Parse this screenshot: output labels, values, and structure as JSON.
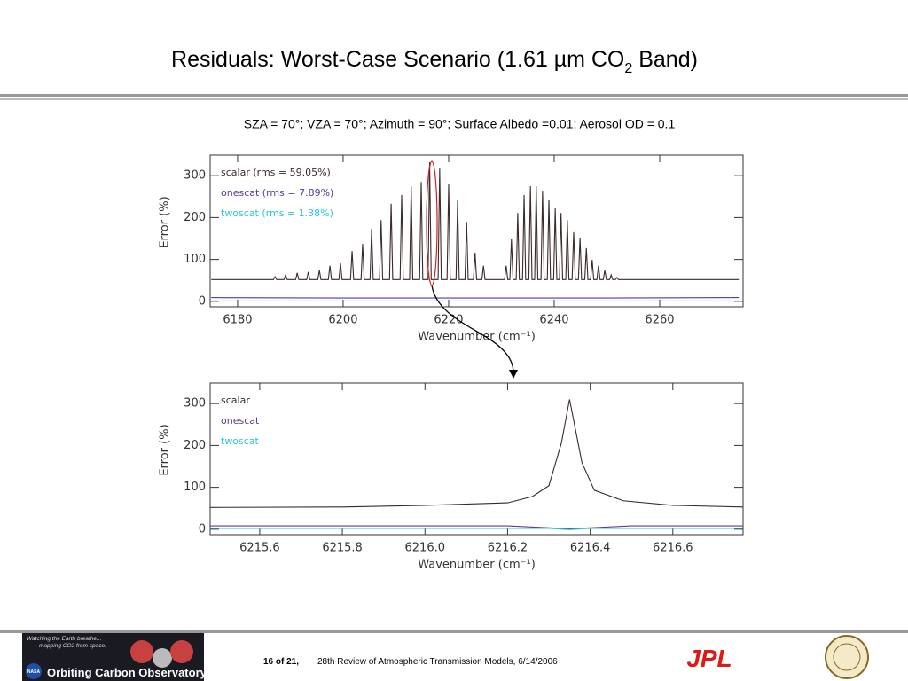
{
  "header": {
    "title_parts": [
      "Residuals: Worst-Case Scenario (1.61 µm CO",
      "2",
      " Band)"
    ],
    "subtitle": "SZA = 70°; VZA = 70°; Azimuth = 90°; Surface Albedo =0.01; Aerosol OD = 0.1"
  },
  "chart_data": [
    {
      "type": "line",
      "xlabel": "Wavenumber (cm⁻¹)",
      "ylabel": "Error (%)",
      "xlim": [
        6174.8,
        6275.8
      ],
      "ylim": [
        -13,
        349
      ],
      "xticks": [
        6180,
        6200,
        6220,
        6240,
        6260
      ],
      "yticks": [
        0,
        100,
        200,
        300
      ],
      "legend_loc": "upper left",
      "series": [
        {
          "name": "scalar (rms = 59.05%)",
          "color": "#3a2a2a",
          "x": [
            6175,
            6186.8,
            6187.1,
            6187.4,
            6188.8,
            6189.1,
            6189.4,
            6191.0,
            6191.3,
            6191.6,
            6193.1,
            6193.4,
            6193.7,
            6195.2,
            6195.5,
            6195.8,
            6197.2,
            6197.5,
            6197.8,
            6199.2,
            6199.5,
            6199.8,
            6201.4,
            6201.7,
            6202.0,
            6203.4,
            6203.7,
            6204.0,
            6205.1,
            6205.4,
            6205.7,
            6206.9,
            6207.2,
            6207.5,
            6208.8,
            6209.1,
            6209.4,
            6210.8,
            6211.1,
            6211.4,
            6212.6,
            6212.9,
            6213.2,
            6214.5,
            6214.8,
            6215.1,
            6216.1,
            6216.4,
            6216.7,
            6218.0,
            6218.3,
            6218.6,
            6219.7,
            6220.0,
            6220.3,
            6221.4,
            6221.7,
            6222.0,
            6223.1,
            6223.4,
            6223.7,
            6224.7,
            6225.0,
            6225.3,
            6226.3,
            6226.6,
            6226.9,
            6230.6,
            6230.9,
            6231.2,
            6231.6,
            6231.9,
            6232.2,
            6232.8,
            6233.1,
            6233.4,
            6234.0,
            6234.3,
            6234.6,
            6235.2,
            6235.5,
            6235.8,
            6236.3,
            6236.6,
            6236.9,
            6237.5,
            6237.8,
            6238.1,
            6238.7,
            6239.0,
            6239.3,
            6239.9,
            6240.2,
            6240.5,
            6241.0,
            6241.3,
            6241.6,
            6242.2,
            6242.5,
            6242.8,
            6243.4,
            6243.7,
            6244.0,
            6244.6,
            6244.9,
            6245.2,
            6245.8,
            6246.1,
            6246.4,
            6246.9,
            6247.2,
            6247.5,
            6248.1,
            6248.4,
            6248.7,
            6249.3,
            6249.6,
            6249.9,
            6250.5,
            6250.8,
            6251.1,
            6251.6,
            6251.9,
            6252.2,
            6275
          ],
          "values": [
            52,
            52,
            59,
            52,
            52,
            63,
            52,
            52,
            68,
            52,
            52,
            70,
            52,
            52,
            74,
            52,
            52,
            85,
            52,
            52,
            91,
            52,
            52,
            120,
            52,
            52,
            137,
            52,
            52,
            173,
            52,
            52,
            194,
            52,
            52,
            233,
            52,
            52,
            254,
            52,
            52,
            275,
            52,
            52,
            285,
            52,
            52,
            332,
            52,
            52,
            317,
            52,
            52,
            279,
            52,
            52,
            243,
            52,
            52,
            190,
            52,
            52,
            116,
            52,
            52,
            85,
            52,
            52,
            85,
            52,
            52,
            148,
            52,
            52,
            211,
            52,
            52,
            254,
            52,
            52,
            275,
            52,
            52,
            275,
            52,
            52,
            264,
            52,
            52,
            243,
            52,
            52,
            222,
            52,
            52,
            211,
            52,
            52,
            194,
            52,
            52,
            165,
            52,
            52,
            152,
            52,
            52,
            127,
            52,
            52,
            99,
            52,
            52,
            85,
            52,
            52,
            74,
            52,
            52,
            63,
            52,
            52,
            57,
            52,
            52
          ]
        },
        {
          "name": "onescat (rms = 7.89%)",
          "color": "#5b3a9e",
          "x": [
            6175,
            6200,
            6225,
            6250,
            6275
          ],
          "values": [
            9,
            8,
            8,
            8,
            9
          ]
        },
        {
          "name": "twoscat (rms = 1.38%)",
          "color": "#2cc6d6",
          "x": [
            6175,
            6275
          ],
          "values": [
            1,
            1
          ]
        }
      ]
    },
    {
      "type": "line",
      "xlabel": "Wavenumber (cm⁻¹)",
      "ylabel": "Error (%)",
      "xlim": [
        6215.48,
        6216.77
      ],
      "ylim": [
        -13,
        349
      ],
      "xticks": [
        6215.6,
        6215.8,
        {
          "value": 6216,
          "label": "6216.0"
        },
        6216.2,
        6216.4,
        6216.6
      ],
      "yticks": [
        0,
        100,
        200,
        300
      ],
      "legend_loc": "upper left",
      "series": [
        {
          "name": "scalar",
          "color": "#3a2a2a",
          "x": [
            6215.48,
            6215.8,
            6216.0,
            6216.2,
            6216.26,
            6216.3,
            6216.33,
            6216.35,
            6216.38,
            6216.41,
            6216.48,
            6216.6,
            6216.77
          ],
          "values": [
            52,
            53,
            57,
            63,
            78,
            104,
            205,
            310,
            159,
            93,
            68,
            57,
            53
          ]
        },
        {
          "name": "onescat",
          "color": "#5b3a9e",
          "x": [
            6215.48,
            6216.2,
            6216.35,
            6216.5,
            6216.77
          ],
          "values": [
            8,
            8,
            1,
            8,
            8
          ]
        },
        {
          "name": "twoscat",
          "color": "#2cc6d6",
          "x": [
            6215.48,
            6216.3,
            6216.35,
            6216.4,
            6216.77
          ],
          "values": [
            2,
            2,
            -1,
            2,
            2
          ]
        }
      ]
    }
  ],
  "footer": {
    "page": "16 of 21,",
    "text": "28th Review of Atmospheric Transmission Models, 6/14/2006",
    "logo_tagline": [
      "Watching the Earth breathe...",
      "mapping CO2 from space."
    ],
    "logo_title": "Orbiting Carbon Observatory",
    "logo_badge": "NASA",
    "jpl": "JPL"
  }
}
